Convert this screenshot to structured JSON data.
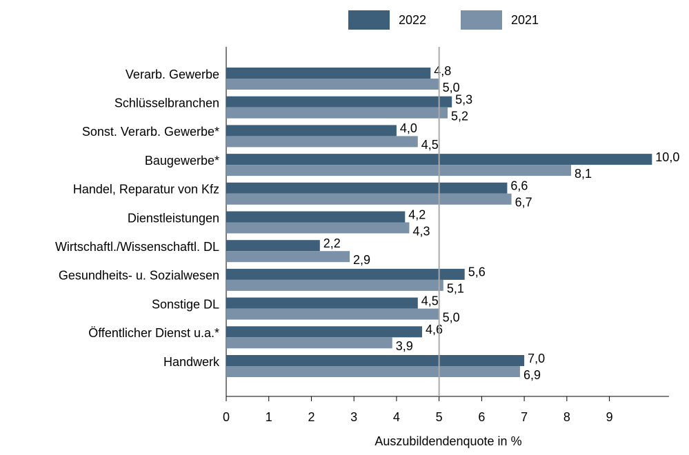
{
  "chart_data": {
    "type": "hbar",
    "xlabel": "Auszubildendenquote in %",
    "categories": [
      "Verarb. Gewerbe",
      "Schlüsselbranchen",
      "Sonst. Verarb. Gewerbe*",
      "Baugewerbe*",
      "Handel, Reparatur von Kfz",
      "Dienstleistungen",
      "Wirtschaftl./Wissenschaftl. DL",
      "Gesundheits- u. Sozialwesen",
      "Sonstige DL",
      "Öffentlicher Dienst u.a.*",
      "Handwerk"
    ],
    "series": [
      {
        "name": "2022",
        "color": "#3d5f7a",
        "values": [
          4.8,
          5.3,
          4.0,
          10.0,
          6.6,
          4.2,
          2.2,
          5.6,
          4.5,
          4.6,
          7.0
        ],
        "value_labels": [
          "4,8",
          "5,3",
          "4,0",
          "10,0",
          "6,6",
          "4,2",
          "2,2",
          "5,6",
          "4,5",
          "4,6",
          "7,0"
        ]
      },
      {
        "name": "2021",
        "color": "#7b91a8",
        "values": [
          5.0,
          5.2,
          4.5,
          8.1,
          6.7,
          4.3,
          2.9,
          5.1,
          5.0,
          3.9,
          6.9
        ],
        "value_labels": [
          "5,0",
          "5,2",
          "4,5",
          "8,1",
          "6,7",
          "4,3",
          "2,9",
          "5,1",
          "5,0",
          "3,9",
          "6,9"
        ]
      }
    ],
    "xlim": [
      0,
      10.4
    ],
    "xticks": [
      0,
      1,
      2,
      3,
      4,
      5,
      6,
      7,
      8,
      9
    ],
    "reference_line": 5,
    "legend": "top"
  }
}
